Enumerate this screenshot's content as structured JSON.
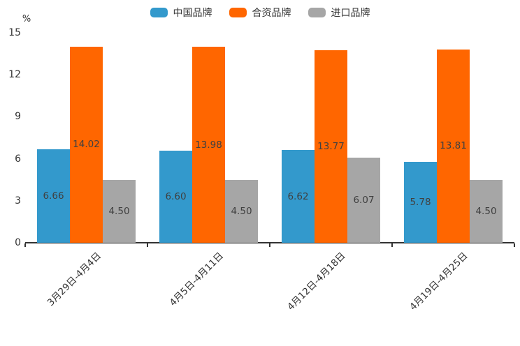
{
  "chart_data": {
    "type": "bar",
    "title": "",
    "xlabel": "",
    "ylabel": "%",
    "ylim": [
      0,
      15
    ],
    "yticks": [
      0,
      3,
      6,
      9,
      12,
      15
    ],
    "grid": false,
    "legend_position": "top-center",
    "bar_label_format": "2-decimals",
    "categories": [
      "3月29日-4月4日",
      "4月5日-4月11日",
      "4月12日-4月18日",
      "4月19日-4月25日"
    ],
    "series": [
      {
        "name": "中国品牌",
        "color": "#3399cc",
        "values": [
          6.66,
          6.6,
          6.62,
          5.78
        ]
      },
      {
        "name": "合资品牌",
        "color": "#ff6600",
        "values": [
          14.02,
          13.98,
          13.77,
          13.81
        ]
      },
      {
        "name": "进口品牌",
        "color": "#a6a6a6",
        "values": [
          4.5,
          4.5,
          6.07,
          4.5
        ]
      }
    ],
    "axis_color": "#333333",
    "label_text_color": "#404040"
  }
}
